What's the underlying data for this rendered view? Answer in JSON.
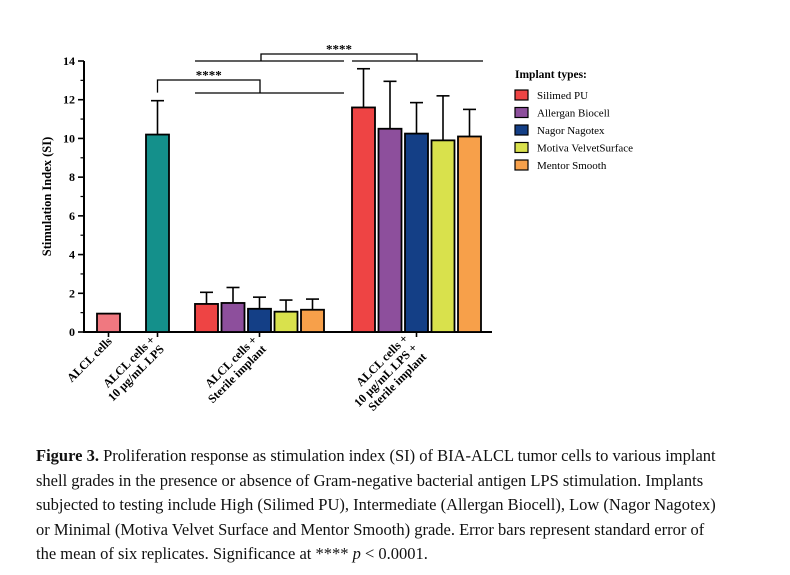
{
  "chart_data": {
    "type": "bar",
    "ylabel": "Stimulation Index (SI)",
    "ylim": [
      0,
      14
    ],
    "yticks": [
      "0",
      "2",
      "4",
      "6",
      "8",
      "10",
      "12",
      "14"
    ],
    "legend": {
      "title": "Implant types:",
      "placement": "right",
      "entries": [
        {
          "name": "Silimed PU",
          "color": "#ee4444"
        },
        {
          "name": "Allergan Biocell",
          "color": "#8d4f9c"
        },
        {
          "name": "Nagor Nagotex",
          "color": "#143f86"
        },
        {
          "name": "Motiva VelvetSurface",
          "color": "#d9e14c"
        },
        {
          "name": "Mentor Smooth",
          "color": "#f7a04a"
        }
      ]
    },
    "groups": [
      {
        "label": [
          "ALCL cells"
        ],
        "bars": [
          {
            "value": 0.95,
            "error": 0,
            "color": "#f07880"
          }
        ]
      },
      {
        "label": [
          "ALCL cells +",
          "10 µg/mL LPS"
        ],
        "bars": [
          {
            "value": 10.2,
            "error": 1.75,
            "color": "#14908b"
          }
        ]
      },
      {
        "label": [
          "ALCL cells +",
          "Sterile implant"
        ],
        "bars": [
          {
            "series": "Silimed PU",
            "value": 1.45,
            "error": 0.6
          },
          {
            "series": "Allergan Biocell",
            "value": 1.5,
            "error": 0.8
          },
          {
            "series": "Nagor Nagotex",
            "value": 1.2,
            "error": 0.6
          },
          {
            "series": "Motiva VelvetSurface",
            "value": 1.05,
            "error": 0.6
          },
          {
            "series": "Mentor Smooth",
            "value": 1.15,
            "error": 0.55
          }
        ]
      },
      {
        "label": [
          "ALCL cells +",
          "10 µg/mL LPS +",
          "Sterile implant"
        ],
        "bars": [
          {
            "series": "Silimed PU",
            "value": 11.6,
            "error": 2.0
          },
          {
            "series": "Allergan Biocell",
            "value": 10.5,
            "error": 2.45
          },
          {
            "series": "Nagor Nagotex",
            "value": 10.25,
            "error": 1.6
          },
          {
            "series": "Motiva VelvetSurface",
            "value": 9.9,
            "error": 2.3
          },
          {
            "series": "Mentor Smooth",
            "value": 10.1,
            "error": 1.4
          }
        ]
      }
    ],
    "significance": [
      {
        "label": "****",
        "from_group": 1,
        "to_group": 2
      },
      {
        "label": "****",
        "from_group": 2,
        "to_group": 3
      }
    ]
  },
  "caption": {
    "figure_label": "Figure 3.",
    "lines": [
      " Proliferation response as stimulation index (SI) of BIA-ALCL tumor cells to various implant",
      "shell grades in the presence or absence of Gram-negative bacterial antigen LPS stimulation. Implants",
      "subjected to testing include High (Silimed PU), Intermediate (Allergan Biocell), Low (Nagor Nagotex)",
      "or Minimal (Motiva Velvet Surface and Mentor Smooth) grade. Error bars represent standard error of"
    ],
    "last_prefix": "the mean of six replicates. Significance at **** ",
    "p_symbol": "p",
    "last_suffix": " < 0.0001."
  }
}
